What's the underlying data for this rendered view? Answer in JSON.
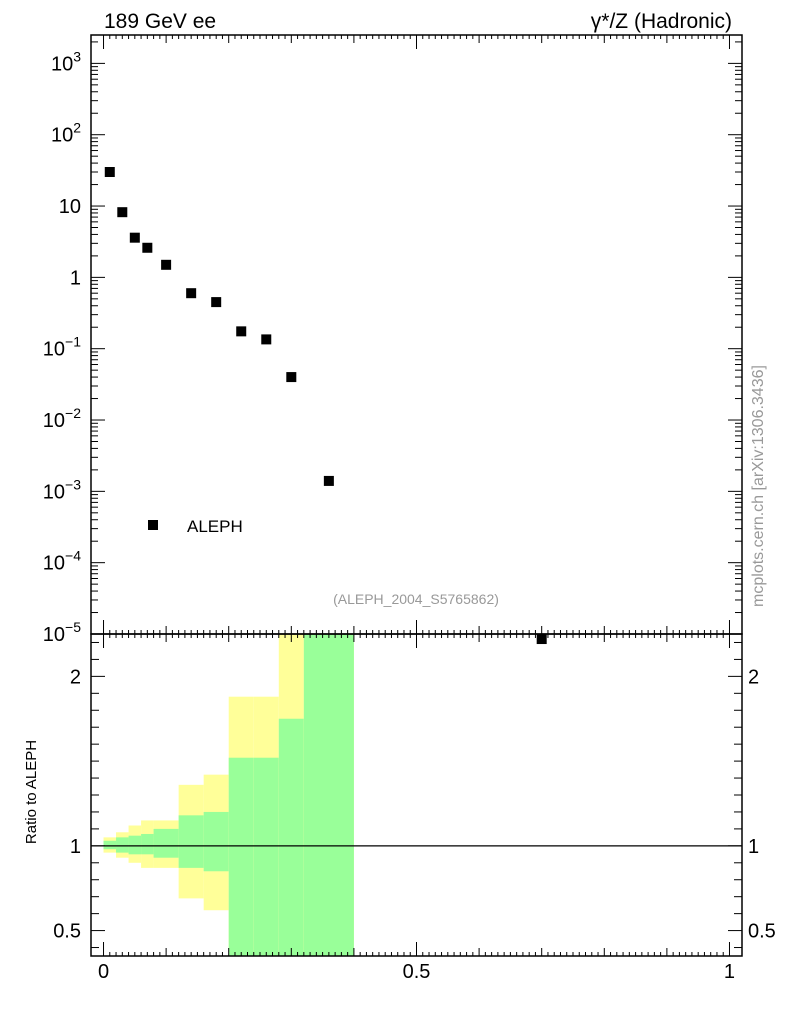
{
  "header": {
    "left": "189 GeV ee",
    "right": "γ*/Z (Hadronic)"
  },
  "side_label": "mcplots.cern.ch [arXiv:1306.3436]",
  "analysis_label": "(ALEPH_2004_S5765862)",
  "ratio_ylabel": "Ratio to ALEPH",
  "colors": {
    "band_outer": "#ffff99",
    "band_inner": "#99ff99",
    "marker": "#000000"
  },
  "chart_data": [
    {
      "type": "scatter",
      "yscale": "log",
      "xlim": [
        -0.02,
        1.02
      ],
      "ylim": [
        1e-05,
        2500
      ],
      "y_tick_labels": [
        "10^-5",
        "10^-4",
        "10^-3",
        "10^-2",
        "10^-1",
        "1",
        "10",
        "10^2",
        "10^3"
      ],
      "legend": {
        "position": "bottom-left",
        "entries": [
          "ALEPH"
        ]
      },
      "series": [
        {
          "name": "ALEPH",
          "x": [
            0.01,
            0.03,
            0.05,
            0.07,
            0.1,
            0.14,
            0.18,
            0.22,
            0.26,
            0.3,
            0.36,
            0.7
          ],
          "y": [
            30,
            8.2,
            3.6,
            2.6,
            1.5,
            0.6,
            0.45,
            0.175,
            0.135,
            0.04,
            0.0014,
            8.5e-06
          ]
        }
      ]
    },
    {
      "type": "area",
      "xlim": [
        -0.02,
        1.02
      ],
      "ylim": [
        0.35,
        2.25
      ],
      "ylabel": "Ratio to ALEPH",
      "x_tick_labels": [
        "0",
        "0.5",
        "1"
      ],
      "y_tick_labels": [
        "0.5",
        "1",
        "2"
      ],
      "reference_line": 1,
      "bins": [
        {
          "lo": 0.0,
          "hi": 0.02,
          "inner": [
            0.98,
            1.03
          ],
          "outer": [
            0.96,
            1.05
          ]
        },
        {
          "lo": 0.02,
          "hi": 0.04,
          "inner": [
            0.96,
            1.05
          ],
          "outer": [
            0.93,
            1.08
          ]
        },
        {
          "lo": 0.04,
          "hi": 0.06,
          "inner": [
            0.95,
            1.06
          ],
          "outer": [
            0.9,
            1.12
          ]
        },
        {
          "lo": 0.06,
          "hi": 0.08,
          "inner": [
            0.95,
            1.07
          ],
          "outer": [
            0.87,
            1.15
          ]
        },
        {
          "lo": 0.08,
          "hi": 0.12,
          "inner": [
            0.93,
            1.1
          ],
          "outer": [
            0.87,
            1.15
          ]
        },
        {
          "lo": 0.12,
          "hi": 0.16,
          "inner": [
            0.87,
            1.18
          ],
          "outer": [
            0.69,
            1.36
          ]
        },
        {
          "lo": 0.16,
          "hi": 0.2,
          "inner": [
            0.85,
            1.2
          ],
          "outer": [
            0.62,
            1.42
          ]
        },
        {
          "lo": 0.2,
          "hi": 0.24,
          "inner": [
            0.35,
            1.52
          ],
          "outer": [
            0.35,
            1.88
          ]
        },
        {
          "lo": 0.24,
          "hi": 0.28,
          "inner": [
            0.35,
            1.52
          ],
          "outer": [
            0.35,
            1.88
          ]
        },
        {
          "lo": 0.28,
          "hi": 0.32,
          "inner": [
            0.35,
            1.75
          ],
          "outer": [
            0.35,
            2.25
          ]
        },
        {
          "lo": 0.32,
          "hi": 0.4,
          "inner": [
            0.35,
            2.25
          ],
          "outer": [
            0.35,
            2.25
          ]
        }
      ]
    }
  ]
}
